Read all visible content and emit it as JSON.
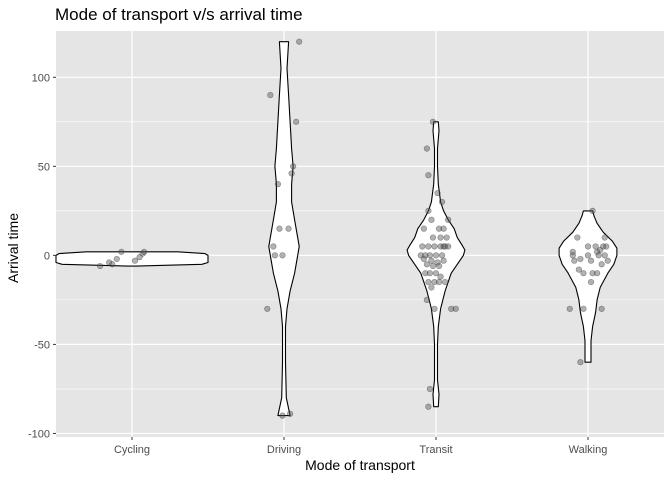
{
  "chart_data": {
    "type": "violin",
    "title": "Mode of transport v/s arrival time",
    "xlabel": "Mode of transport",
    "ylabel": "Arrival time",
    "categories": [
      "Cycling",
      "Driving",
      "Transit",
      "Walking"
    ],
    "ylim": [
      -102,
      126
    ],
    "yticks": [
      -100,
      -50,
      0,
      50,
      100
    ],
    "grid": true,
    "panel_background": "#e5e5e5",
    "violin_fill": "#ffffff",
    "violin_stroke": "#000000",
    "point_color": "#555555",
    "groups": [
      {
        "category": "Cycling",
        "range": [
          -6,
          2
        ],
        "density": [
          [
            -6,
            0.03
          ],
          [
            -5,
            0.46
          ],
          [
            -4,
            0.5
          ],
          [
            -3,
            0.5
          ],
          [
            -2,
            0.5
          ],
          [
            -1,
            0.5
          ],
          [
            0,
            0.5
          ],
          [
            1,
            0.48
          ],
          [
            2,
            0.3
          ]
        ],
        "points": [
          [
            -0.21,
            -6
          ],
          [
            -0.15,
            -4
          ],
          [
            -0.1,
            -2
          ],
          [
            -0.07,
            2
          ],
          [
            -0.13,
            -5
          ],
          [
            0.02,
            -3
          ],
          [
            0.05,
            -1
          ],
          [
            0.07,
            1
          ],
          [
            0.08,
            2
          ]
        ]
      },
      {
        "category": "Driving",
        "range": [
          -90,
          120
        ],
        "density": [
          [
            -90,
            0.04
          ],
          [
            -80,
            0.015
          ],
          [
            -60,
            0.01
          ],
          [
            -40,
            0.01
          ],
          [
            -30,
            0.02
          ],
          [
            -20,
            0.04
          ],
          [
            -10,
            0.07
          ],
          [
            0,
            0.09
          ],
          [
            5,
            0.1
          ],
          [
            10,
            0.09
          ],
          [
            20,
            0.07
          ],
          [
            30,
            0.05
          ],
          [
            40,
            0.05
          ],
          [
            50,
            0.06
          ],
          [
            60,
            0.05
          ],
          [
            75,
            0.04
          ],
          [
            90,
            0.03
          ],
          [
            105,
            0.02
          ],
          [
            120,
            0.03
          ]
        ],
        "points": [
          [
            0.1,
            120
          ],
          [
            -0.09,
            90
          ],
          [
            0.08,
            75
          ],
          [
            0.06,
            50
          ],
          [
            0.05,
            46
          ],
          [
            -0.04,
            40
          ],
          [
            -0.03,
            15
          ],
          [
            0.03,
            15
          ],
          [
            -0.07,
            5
          ],
          [
            -0.06,
            0
          ],
          [
            -0.01,
            0
          ],
          [
            -0.11,
            -30
          ],
          [
            -0.01,
            -90
          ],
          [
            0.04,
            -89
          ]
        ]
      },
      {
        "category": "Transit",
        "range": [
          -85,
          75
        ],
        "density": [
          [
            -85,
            0.015
          ],
          [
            -78,
            0.02
          ],
          [
            -70,
            0.01
          ],
          [
            -60,
            0.01
          ],
          [
            -50,
            0.01
          ],
          [
            -40,
            0.015
          ],
          [
            -30,
            0.03
          ],
          [
            -20,
            0.06
          ],
          [
            -10,
            0.1
          ],
          [
            -5,
            0.14
          ],
          [
            0,
            0.18
          ],
          [
            3,
            0.19
          ],
          [
            6,
            0.17
          ],
          [
            10,
            0.14
          ],
          [
            15,
            0.12
          ],
          [
            20,
            0.08
          ],
          [
            25,
            0.05
          ],
          [
            30,
            0.03
          ],
          [
            40,
            0.015
          ],
          [
            50,
            0.01
          ],
          [
            60,
            0.01
          ],
          [
            70,
            0.02
          ],
          [
            75,
            0.015
          ]
        ],
        "points": [
          [
            -0.02,
            75
          ],
          [
            -0.06,
            60
          ],
          [
            -0.05,
            45
          ],
          [
            0.01,
            35
          ],
          [
            0.04,
            30
          ],
          [
            -0.05,
            25
          ],
          [
            -0.03,
            20
          ],
          [
            0.08,
            20
          ],
          [
            0.02,
            15
          ],
          [
            0.05,
            15
          ],
          [
            -0.08,
            15
          ],
          [
            -0.02,
            10
          ],
          [
            0.03,
            10
          ],
          [
            0.07,
            10
          ],
          [
            -0.09,
            5
          ],
          [
            -0.05,
            5
          ],
          [
            -0.01,
            5
          ],
          [
            0.03,
            5
          ],
          [
            0.05,
            5
          ],
          [
            0.06,
            5
          ],
          [
            0.08,
            5
          ],
          [
            -0.1,
            0
          ],
          [
            -0.07,
            0
          ],
          [
            -0.04,
            0
          ],
          [
            0.0,
            0
          ],
          [
            0.04,
            0
          ],
          [
            -0.08,
            -2
          ],
          [
            -0.03,
            -3
          ],
          [
            0.01,
            -4
          ],
          [
            0.05,
            -3
          ],
          [
            -0.06,
            -5
          ],
          [
            -0.02,
            -6
          ],
          [
            0.02,
            -6
          ],
          [
            -0.07,
            -10
          ],
          [
            -0.04,
            -10
          ],
          [
            0.0,
            -10
          ],
          [
            0.03,
            -12
          ],
          [
            -0.05,
            -15
          ],
          [
            -0.01,
            -15
          ],
          [
            0.02,
            -15
          ],
          [
            0.06,
            -15
          ],
          [
            -0.03,
            -18
          ],
          [
            -0.06,
            -25
          ],
          [
            -0.01,
            -30
          ],
          [
            0.1,
            -30
          ],
          [
            0.13,
            -30
          ],
          [
            -0.04,
            -75
          ],
          [
            -0.05,
            -85
          ]
        ]
      },
      {
        "category": "Walking",
        "range": [
          -60,
          25
        ],
        "density": [
          [
            -60,
            0.02
          ],
          [
            -55,
            0.02
          ],
          [
            -48,
            0.02
          ],
          [
            -40,
            0.03
          ],
          [
            -32,
            0.05
          ],
          [
            -25,
            0.06
          ],
          [
            -18,
            0.08
          ],
          [
            -10,
            0.13
          ],
          [
            -5,
            0.17
          ],
          [
            0,
            0.19
          ],
          [
            4,
            0.19
          ],
          [
            8,
            0.16
          ],
          [
            13,
            0.1
          ],
          [
            18,
            0.06
          ],
          [
            22,
            0.04
          ],
          [
            25,
            0.03
          ]
        ],
        "points": [
          [
            0.03,
            25
          ],
          [
            0.11,
            10
          ],
          [
            -0.07,
            10
          ],
          [
            0.0,
            5
          ],
          [
            0.05,
            5
          ],
          [
            0.1,
            5
          ],
          [
            0.12,
            5
          ],
          [
            -0.1,
            2
          ],
          [
            0.08,
            3
          ],
          [
            0.06,
            2
          ],
          [
            -0.1,
            0
          ],
          [
            0.0,
            0
          ],
          [
            0.07,
            0
          ],
          [
            0.11,
            0
          ],
          [
            -0.05,
            -2
          ],
          [
            -0.09,
            -3
          ],
          [
            0.02,
            -3
          ],
          [
            0.13,
            -3
          ],
          [
            0.09,
            -5
          ],
          [
            -0.06,
            -8
          ],
          [
            -0.03,
            -10
          ],
          [
            0.03,
            -10
          ],
          [
            0.06,
            -10
          ],
          [
            0.02,
            -15
          ],
          [
            -0.12,
            -30
          ],
          [
            -0.03,
            -30
          ],
          [
            0.09,
            -30
          ],
          [
            -0.05,
            -60
          ]
        ]
      }
    ]
  }
}
